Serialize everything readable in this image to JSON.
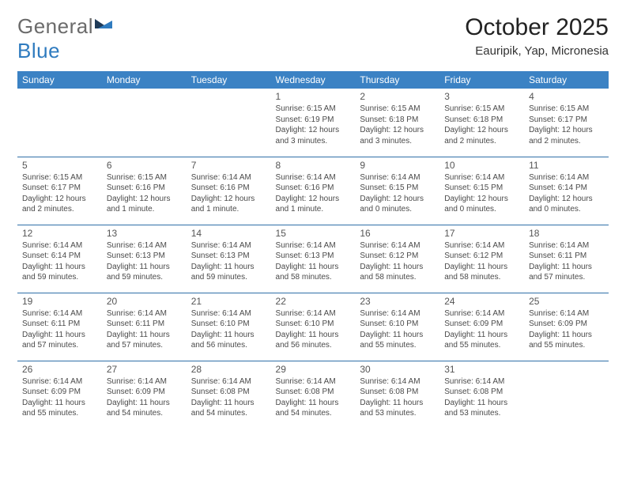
{
  "meta": {
    "type": "calendar-table",
    "background_color": "#ffffff",
    "header_bg": "#3b82c4",
    "header_text_color": "#ffffff",
    "divider_color": "#2f6fa8",
    "body_text_color": "#4a4a4a",
    "title_fontsize": 30,
    "subtitle_fontsize": 15,
    "header_fontsize": 12,
    "daynum_fontsize": 12,
    "info_fontsize": 10,
    "columns": 7,
    "rows": 5
  },
  "logo": {
    "part1": "General",
    "part2": "Blue",
    "part1_color": "#6b6b6b",
    "part2_color": "#2f7bbf",
    "mark_colors": [
      "#1f3a57",
      "#2f7bbf"
    ]
  },
  "header": {
    "title": "October 2025",
    "subtitle": "Eauripik, Yap, Micronesia"
  },
  "weekdays": [
    "Sunday",
    "Monday",
    "Tuesday",
    "Wednesday",
    "Thursday",
    "Friday",
    "Saturday"
  ],
  "weeks": [
    [
      null,
      null,
      null,
      {
        "n": "1",
        "sr": "Sunrise: 6:15 AM",
        "ss": "Sunset: 6:19 PM",
        "dl": "Daylight: 12 hours and 3 minutes."
      },
      {
        "n": "2",
        "sr": "Sunrise: 6:15 AM",
        "ss": "Sunset: 6:18 PM",
        "dl": "Daylight: 12 hours and 3 minutes."
      },
      {
        "n": "3",
        "sr": "Sunrise: 6:15 AM",
        "ss": "Sunset: 6:18 PM",
        "dl": "Daylight: 12 hours and 2 minutes."
      },
      {
        "n": "4",
        "sr": "Sunrise: 6:15 AM",
        "ss": "Sunset: 6:17 PM",
        "dl": "Daylight: 12 hours and 2 minutes."
      }
    ],
    [
      {
        "n": "5",
        "sr": "Sunrise: 6:15 AM",
        "ss": "Sunset: 6:17 PM",
        "dl": "Daylight: 12 hours and 2 minutes."
      },
      {
        "n": "6",
        "sr": "Sunrise: 6:15 AM",
        "ss": "Sunset: 6:16 PM",
        "dl": "Daylight: 12 hours and 1 minute."
      },
      {
        "n": "7",
        "sr": "Sunrise: 6:14 AM",
        "ss": "Sunset: 6:16 PM",
        "dl": "Daylight: 12 hours and 1 minute."
      },
      {
        "n": "8",
        "sr": "Sunrise: 6:14 AM",
        "ss": "Sunset: 6:16 PM",
        "dl": "Daylight: 12 hours and 1 minute."
      },
      {
        "n": "9",
        "sr": "Sunrise: 6:14 AM",
        "ss": "Sunset: 6:15 PM",
        "dl": "Daylight: 12 hours and 0 minutes."
      },
      {
        "n": "10",
        "sr": "Sunrise: 6:14 AM",
        "ss": "Sunset: 6:15 PM",
        "dl": "Daylight: 12 hours and 0 minutes."
      },
      {
        "n": "11",
        "sr": "Sunrise: 6:14 AM",
        "ss": "Sunset: 6:14 PM",
        "dl": "Daylight: 12 hours and 0 minutes."
      }
    ],
    [
      {
        "n": "12",
        "sr": "Sunrise: 6:14 AM",
        "ss": "Sunset: 6:14 PM",
        "dl": "Daylight: 11 hours and 59 minutes."
      },
      {
        "n": "13",
        "sr": "Sunrise: 6:14 AM",
        "ss": "Sunset: 6:13 PM",
        "dl": "Daylight: 11 hours and 59 minutes."
      },
      {
        "n": "14",
        "sr": "Sunrise: 6:14 AM",
        "ss": "Sunset: 6:13 PM",
        "dl": "Daylight: 11 hours and 59 minutes."
      },
      {
        "n": "15",
        "sr": "Sunrise: 6:14 AM",
        "ss": "Sunset: 6:13 PM",
        "dl": "Daylight: 11 hours and 58 minutes."
      },
      {
        "n": "16",
        "sr": "Sunrise: 6:14 AM",
        "ss": "Sunset: 6:12 PM",
        "dl": "Daylight: 11 hours and 58 minutes."
      },
      {
        "n": "17",
        "sr": "Sunrise: 6:14 AM",
        "ss": "Sunset: 6:12 PM",
        "dl": "Daylight: 11 hours and 58 minutes."
      },
      {
        "n": "18",
        "sr": "Sunrise: 6:14 AM",
        "ss": "Sunset: 6:11 PM",
        "dl": "Daylight: 11 hours and 57 minutes."
      }
    ],
    [
      {
        "n": "19",
        "sr": "Sunrise: 6:14 AM",
        "ss": "Sunset: 6:11 PM",
        "dl": "Daylight: 11 hours and 57 minutes."
      },
      {
        "n": "20",
        "sr": "Sunrise: 6:14 AM",
        "ss": "Sunset: 6:11 PM",
        "dl": "Daylight: 11 hours and 57 minutes."
      },
      {
        "n": "21",
        "sr": "Sunrise: 6:14 AM",
        "ss": "Sunset: 6:10 PM",
        "dl": "Daylight: 11 hours and 56 minutes."
      },
      {
        "n": "22",
        "sr": "Sunrise: 6:14 AM",
        "ss": "Sunset: 6:10 PM",
        "dl": "Daylight: 11 hours and 56 minutes."
      },
      {
        "n": "23",
        "sr": "Sunrise: 6:14 AM",
        "ss": "Sunset: 6:10 PM",
        "dl": "Daylight: 11 hours and 55 minutes."
      },
      {
        "n": "24",
        "sr": "Sunrise: 6:14 AM",
        "ss": "Sunset: 6:09 PM",
        "dl": "Daylight: 11 hours and 55 minutes."
      },
      {
        "n": "25",
        "sr": "Sunrise: 6:14 AM",
        "ss": "Sunset: 6:09 PM",
        "dl": "Daylight: 11 hours and 55 minutes."
      }
    ],
    [
      {
        "n": "26",
        "sr": "Sunrise: 6:14 AM",
        "ss": "Sunset: 6:09 PM",
        "dl": "Daylight: 11 hours and 55 minutes."
      },
      {
        "n": "27",
        "sr": "Sunrise: 6:14 AM",
        "ss": "Sunset: 6:09 PM",
        "dl": "Daylight: 11 hours and 54 minutes."
      },
      {
        "n": "28",
        "sr": "Sunrise: 6:14 AM",
        "ss": "Sunset: 6:08 PM",
        "dl": "Daylight: 11 hours and 54 minutes."
      },
      {
        "n": "29",
        "sr": "Sunrise: 6:14 AM",
        "ss": "Sunset: 6:08 PM",
        "dl": "Daylight: 11 hours and 54 minutes."
      },
      {
        "n": "30",
        "sr": "Sunrise: 6:14 AM",
        "ss": "Sunset: 6:08 PM",
        "dl": "Daylight: 11 hours and 53 minutes."
      },
      {
        "n": "31",
        "sr": "Sunrise: 6:14 AM",
        "ss": "Sunset: 6:08 PM",
        "dl": "Daylight: 11 hours and 53 minutes."
      },
      null
    ]
  ]
}
